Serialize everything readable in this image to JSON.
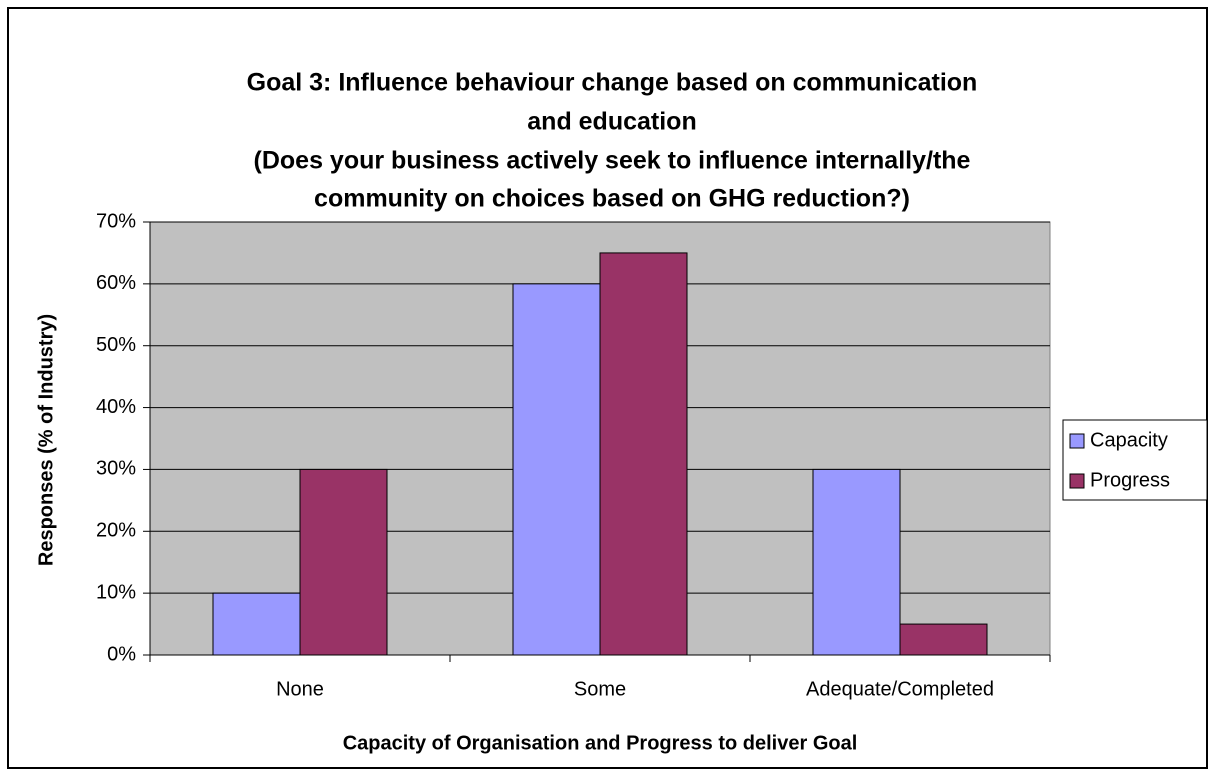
{
  "chart_data": {
    "type": "bar",
    "title": [
      "Goal 3: Influence behaviour change based on communication",
      "and education"
    ],
    "subtitle": [
      "(Does your business actively seek to influence internally/the",
      "community on choices based on GHG reduction?)"
    ],
    "x_label": "Capacity of Organisation and Progress to deliver Goal",
    "y_label": "Responses (% of Industry)",
    "categories": [
      "None",
      "Some",
      "Adequate/Completed"
    ],
    "series": [
      {
        "name": "Capacity",
        "color": "#9999ff",
        "values": [
          10,
          60,
          30
        ]
      },
      {
        "name": "Progress",
        "color": "#993366",
        "values": [
          30,
          65,
          5
        ]
      }
    ],
    "ylim": [
      0,
      70
    ],
    "yticks": [
      {
        "value": 0,
        "label": "0%"
      },
      {
        "value": 10,
        "label": "10%"
      },
      {
        "value": 20,
        "label": "20%"
      },
      {
        "value": 30,
        "label": "30%"
      },
      {
        "value": 40,
        "label": "40%"
      },
      {
        "value": 50,
        "label": "50%"
      },
      {
        "value": 60,
        "label": "60%"
      },
      {
        "value": 70,
        "label": "70%"
      }
    ],
    "grid": true,
    "legend": "right"
  }
}
